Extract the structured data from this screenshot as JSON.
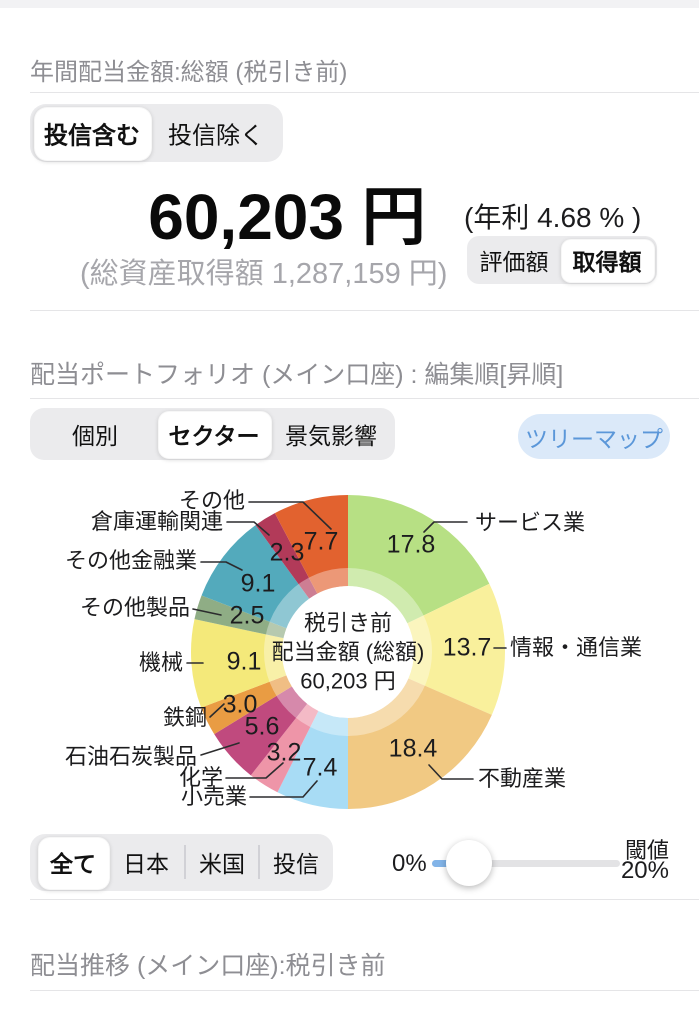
{
  "summary": {
    "title": "年間配当金額:総額 (税引き前)",
    "fund_toggle": {
      "options": [
        "投信含む",
        "投信除く"
      ],
      "selected": "投信含む"
    },
    "amount": "60,203 円",
    "yield_note": "(年利 4.68 % )",
    "acquisition_note": "(総資産取得額 1,287,159 円)",
    "basis_toggle": {
      "options": [
        "評価額",
        "取得額"
      ],
      "selected": "取得額"
    }
  },
  "portfolio": {
    "title": "配当ポートフォリオ (メイン口座) : 編集順[昇順]",
    "view_tabs": {
      "options": [
        "個別",
        "セクター",
        "景気影響"
      ],
      "selected": "セクター"
    },
    "treemap_button": "ツリーマップ",
    "region_tabs": {
      "options": [
        "全て",
        "日本",
        "米国",
        "投信"
      ],
      "selected": "全て"
    },
    "threshold_slider": {
      "label": "閾値",
      "min_label": "0%",
      "max_label": "20%"
    }
  },
  "chart_data": {
    "type": "donut",
    "title": "配当ポートフォリオ (メイン口座) : 編集順[昇順]",
    "unit": "%",
    "clockwise_from_top": true,
    "segments": [
      {
        "key": "services",
        "label": "サービス業",
        "value": 17.8,
        "display": "17.8",
        "color": "#b7e084"
      },
      {
        "key": "info-telecom",
        "label": "情報・通信業",
        "value": 13.7,
        "display": "13.7",
        "color": "#f9f09c"
      },
      {
        "key": "real-estate",
        "label": "不動産業",
        "value": 18.4,
        "display": "18.4",
        "color": "#f1c983"
      },
      {
        "key": "retail",
        "label": "小売業",
        "value": 7.4,
        "display": "7.4",
        "color": "#a8dcf5"
      },
      {
        "key": "chemicals",
        "label": "化学",
        "value": 3.2,
        "display": "3.2",
        "color": "#ee95a8"
      },
      {
        "key": "oil-coal-products",
        "label": "石油石炭製品",
        "value": 5.6,
        "display": "5.6",
        "color": "#c04a7e"
      },
      {
        "key": "steel",
        "label": "鉄鋼",
        "value": 3.0,
        "display": "3.0",
        "color": "#e99c43"
      },
      {
        "key": "machinery",
        "label": "機械",
        "value": 9.1,
        "display": "9.1",
        "color": "#f4e97a"
      },
      {
        "key": "other-products",
        "label": "その他製品",
        "value": 2.5,
        "display": "2.5",
        "color": "#8fad85"
      },
      {
        "key": "other-financial",
        "label": "その他金融業",
        "value": 9.1,
        "display": "9.1",
        "color": "#53aabc"
      },
      {
        "key": "warehouse-transport",
        "label": "倉庫運輸関連",
        "value": 2.3,
        "display": "2.3",
        "color": "#b23a59"
      },
      {
        "key": "other",
        "label": "その他",
        "value": 7.7,
        "display": "7.7",
        "color": "#e2622f"
      }
    ],
    "center_text": [
      "税引き前",
      "配当金額 (総額)",
      "60,203 円"
    ]
  },
  "trend": {
    "title": "配当推移 (メイン口座):税引き前"
  }
}
